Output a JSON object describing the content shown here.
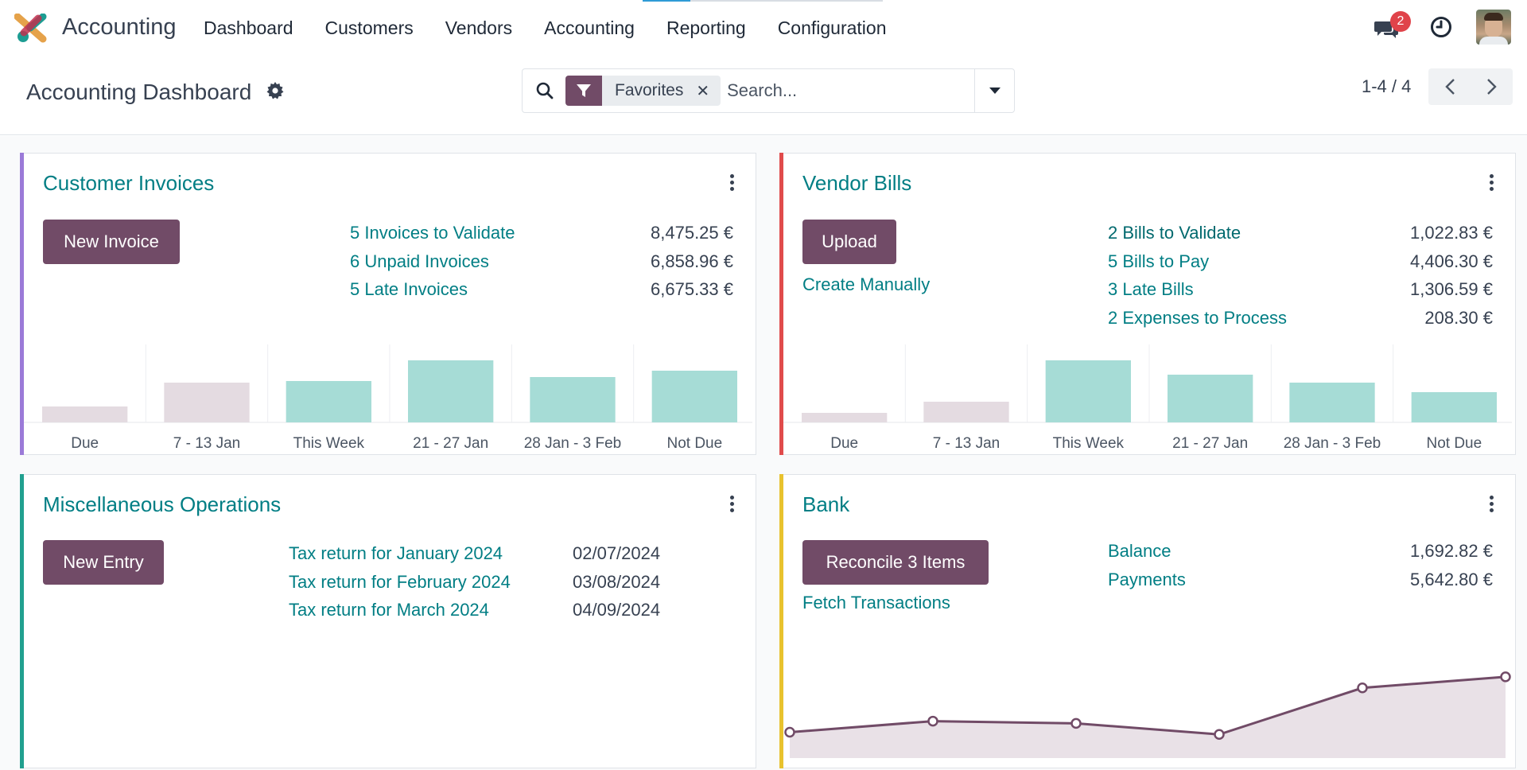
{
  "app": {
    "name": "Accounting"
  },
  "nav": {
    "menu": [
      "Dashboard",
      "Customers",
      "Vendors",
      "Accounting",
      "Reporting",
      "Configuration"
    ],
    "messages_count": "2"
  },
  "control": {
    "title": "Accounting Dashboard",
    "facet": "Favorites",
    "search_placeholder": "Search...",
    "pager": "1-4 / 4"
  },
  "cards": {
    "customer_invoices": {
      "title": "Customer Invoices",
      "button": "New Invoice",
      "rows": [
        {
          "label": "5 Invoices to Validate",
          "amount": "8,475.25 €"
        },
        {
          "label": "6 Unpaid Invoices",
          "amount": "6,858.96 €"
        },
        {
          "label": "5 Late Invoices",
          "amount": "6,675.33 €"
        }
      ],
      "graph": {
        "categories": [
          "Due",
          "7 - 13 Jan",
          "This Week",
          "21 - 27 Jan",
          "28 Jan - 3 Feb",
          "Not Due"
        ],
        "values": [
          20,
          50,
          52,
          78,
          57,
          65
        ],
        "colors": [
          "#e4dbe1",
          "#e4dbe1",
          "#a6dcd6",
          "#a6dcd6",
          "#a6dcd6",
          "#a6dcd6"
        ]
      }
    },
    "vendor_bills": {
      "title": "Vendor Bills",
      "button": "Upload",
      "secondary_link": "Create Manually",
      "rows": [
        {
          "label": "2 Bills to Validate",
          "amount": "1,022.83 €"
        },
        {
          "label": "5 Bills to Pay",
          "amount": "4,406.30 €"
        },
        {
          "label": "3 Late Bills",
          "amount": "1,306.59 €"
        },
        {
          "label": "2 Expenses to Process",
          "amount": "208.30 €"
        }
      ],
      "graph": {
        "categories": [
          "Due",
          "7 - 13 Jan",
          "This Week",
          "21 - 27 Jan",
          "28 Jan - 3 Feb",
          "Not Due"
        ],
        "values": [
          12,
          26,
          78,
          60,
          50,
          38
        ],
        "colors": [
          "#e4dbe1",
          "#e4dbe1",
          "#a6dcd6",
          "#a6dcd6",
          "#a6dcd6",
          "#a6dcd6"
        ]
      }
    },
    "misc": {
      "title": "Miscellaneous Operations",
      "button": "New Entry",
      "rows": [
        {
          "label": "Tax return for January 2024",
          "date": "02/07/2024"
        },
        {
          "label": "Tax return for February 2024",
          "date": "03/08/2024"
        },
        {
          "label": "Tax return for March 2024",
          "date": "04/09/2024"
        }
      ]
    },
    "bank": {
      "title": "Bank",
      "button": "Reconcile 3 Items",
      "secondary_link": "Fetch Transactions",
      "rows": [
        {
          "label": "Balance",
          "amount": "1,692.82 €"
        },
        {
          "label": "Payments",
          "amount": "5,642.80 €"
        }
      ],
      "graph": {
        "values": [
          35,
          50,
          47,
          32,
          95,
          110
        ]
      }
    }
  },
  "colors": {
    "brand": "#714b67",
    "link": "#017e84",
    "accent_invoices": "#9b7ad8",
    "accent_bills": "#e04b4b",
    "accent_misc": "#21a08f",
    "accent_bank": "#e8c22e"
  }
}
